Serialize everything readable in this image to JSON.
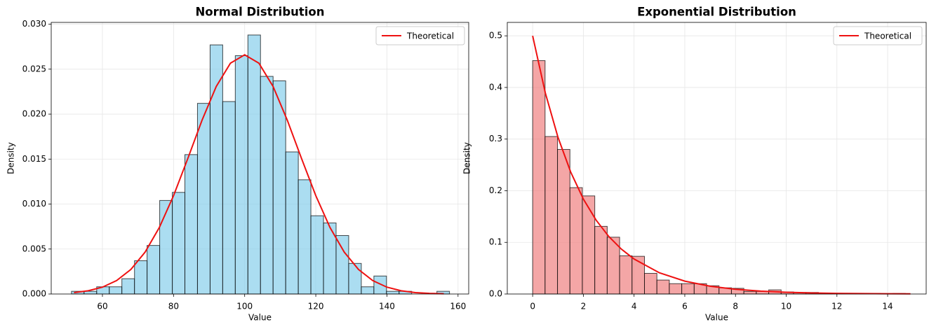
{
  "chart_data": [
    {
      "type": "histogram",
      "title": "Normal Distribution",
      "xlabel": "Value",
      "ylabel": "Density",
      "bins": [
        51.3,
        54.84,
        58.39,
        61.93,
        65.47,
        69.02,
        72.56,
        76.1,
        79.65,
        83.19,
        86.73,
        90.28,
        93.82,
        97.36,
        100.91,
        104.45,
        107.99,
        111.54,
        115.08,
        118.62,
        122.17,
        125.71,
        129.25,
        132.8,
        136.34,
        139.88,
        143.43,
        146.97,
        150.51,
        154.06,
        157.6
      ],
      "values": [
        0.0003,
        0.0003,
        0.0008,
        0.0008,
        0.0017,
        0.0037,
        0.0054,
        0.0104,
        0.0113,
        0.0155,
        0.0212,
        0.0277,
        0.0214,
        0.0265,
        0.0288,
        0.0242,
        0.0237,
        0.0158,
        0.0127,
        0.0087,
        0.0079,
        0.0065,
        0.0034,
        0.0008,
        0.002,
        0.0003,
        0.0003,
        0,
        0,
        0.0003
      ],
      "color": "#87ceeb",
      "alpha": 0.7,
      "line": {
        "name": "Theoretical",
        "color": "#ee1111",
        "x": [
          52,
          56,
          60,
          64,
          68,
          72,
          76,
          80,
          84,
          88,
          92,
          96,
          100,
          104,
          108,
          112,
          116,
          120,
          124,
          128,
          132,
          136,
          140,
          144,
          148,
          152,
          156
        ],
        "values": [
          0.000159,
          0.00036,
          0.00076,
          0.001493,
          0.002732,
          0.00466,
          0.007394,
          0.010934,
          0.015056,
          0.019312,
          0.02307,
          0.025668,
          0.026596,
          0.025668,
          0.02307,
          0.019312,
          0.015056,
          0.010934,
          0.007394,
          0.00466,
          0.002732,
          0.001493,
          0.00076,
          0.00036,
          0.000159,
          6.54e-05,
          2.5e-05
        ]
      },
      "xlim": [
        45.6,
        163
      ],
      "ylim": [
        0,
        0.0302
      ],
      "xticks": [
        60,
        80,
        100,
        120,
        140,
        160
      ],
      "yticks": [
        {
          "value": 0,
          "label": "0.000"
        },
        {
          "value": 0.005,
          "label": "0.005"
        },
        {
          "value": 0.01,
          "label": "0.010"
        },
        {
          "value": 0.015,
          "label": "0.015"
        },
        {
          "value": 0.02,
          "label": "0.020"
        },
        {
          "value": 0.025,
          "label": "0.025"
        },
        {
          "value": 0.03,
          "label": "0.030"
        }
      ],
      "grid": true,
      "legend": "upper right"
    },
    {
      "type": "histogram",
      "title": "Exponential Distribution",
      "xlabel": "Value",
      "ylabel": "Density",
      "bins": [
        0,
        0.49,
        0.98,
        1.47,
        1.96,
        2.45,
        2.94,
        3.43,
        3.92,
        4.41,
        4.9,
        5.39,
        5.88,
        6.37,
        6.86,
        7.35,
        7.84,
        8.33,
        8.82,
        9.31,
        9.8,
        10.29,
        10.78,
        11.27,
        11.76,
        12.25,
        12.74,
        13.23,
        13.72,
        14.21,
        14.7
      ],
      "values": [
        0.452,
        0.305,
        0.28,
        0.206,
        0.19,
        0.131,
        0.11,
        0.074,
        0.073,
        0.04,
        0.027,
        0.02,
        0.02,
        0.02,
        0.016,
        0.012,
        0.011,
        0.005,
        0.005,
        0.008,
        0.004,
        0.003,
        0.003,
        0.002,
        0.001,
        0.001,
        0.001,
        0.001,
        0,
        0.001
      ],
      "color": "#f08080",
      "alpha": 0.7,
      "line": {
        "name": "Theoretical",
        "color": "#ee1111",
        "x": [
          0,
          0.5,
          1,
          1.5,
          2,
          2.5,
          3,
          3.5,
          4,
          5,
          6,
          7,
          8,
          9,
          10,
          11,
          12,
          13,
          14,
          14.9
        ],
        "values": [
          0.5,
          0.3894,
          0.3033,
          0.2362,
          0.1839,
          0.1433,
          0.1116,
          0.0869,
          0.0677,
          0.041,
          0.0249,
          0.0151,
          0.0092,
          0.0056,
          0.0034,
          0.002,
          0.0012,
          0.0008,
          0.0005,
          0.0003
        ]
      },
      "xlim": [
        -1.0,
        15.52
      ],
      "ylim": [
        0,
        0.526
      ],
      "xticks": [
        0,
        2,
        4,
        6,
        8,
        10,
        12,
        14
      ],
      "yticks": [
        {
          "value": 0,
          "label": "0.0"
        },
        0.1,
        0.2,
        0.3,
        0.4,
        0.5
      ],
      "grid": true,
      "legend": "upper right"
    }
  ]
}
